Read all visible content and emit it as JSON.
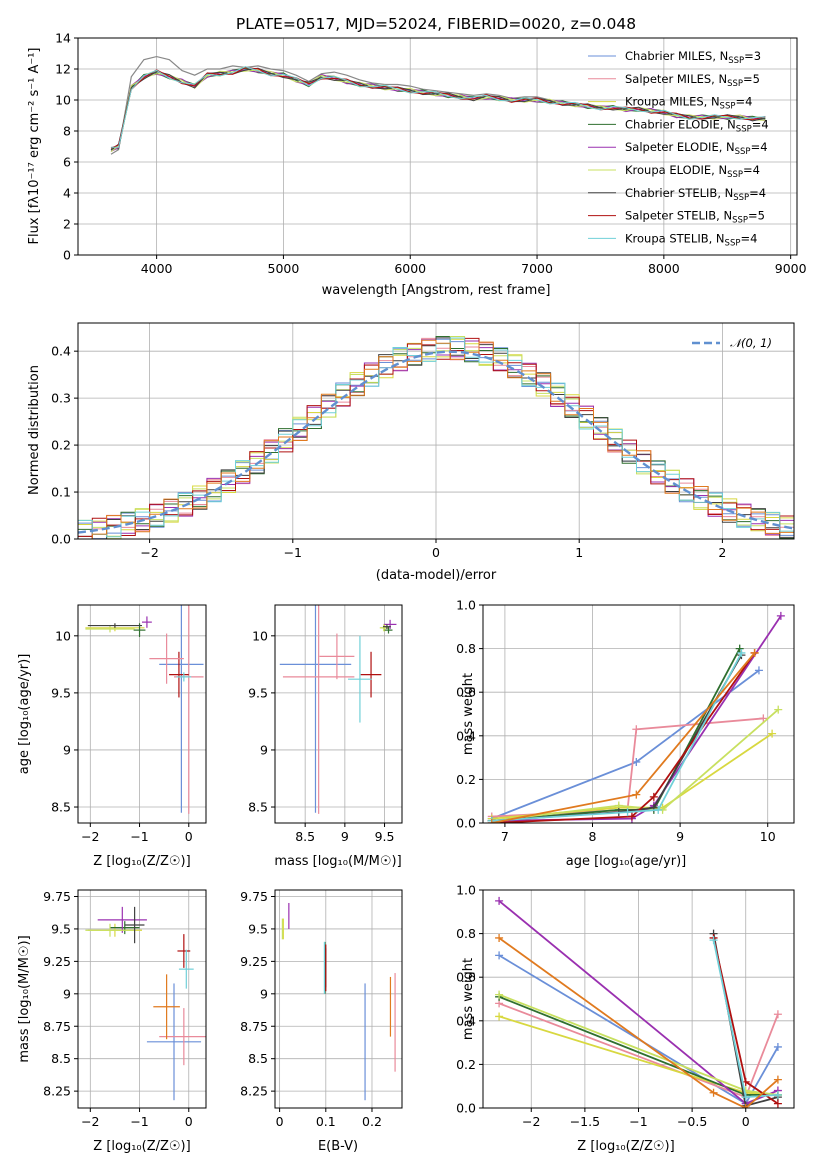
{
  "series_styles": [
    {
      "name": "Chabrier MILES",
      "color": "#6a8fd8"
    },
    {
      "name": "Salpeter MILES",
      "color": "#e98a9a"
    },
    {
      "name": "Kroupa MILES",
      "color": "#d8d840"
    },
    {
      "name": "Chabrier ELODIE",
      "color": "#2f6f2f"
    },
    {
      "name": "Salpeter ELODIE",
      "color": "#9a30b0"
    },
    {
      "name": "Kroupa ELODIE",
      "color": "#c8e060"
    },
    {
      "name": "Chabrier STELIB",
      "color": "#404040"
    },
    {
      "name": "Salpeter STELIB",
      "color": "#b01010"
    },
    {
      "name": "Kroupa STELIB",
      "color": "#70d0d8"
    }
  ],
  "chart_data": [
    {
      "id": "spectrum",
      "type": "line",
      "title": "PLATE=0517, MJD=52024, FIBERID=0020, z=0.048",
      "xlabel": "wavelength [Angstrom, rest frame]",
      "ylabel": "Flux [fλ10⁻¹⁷ erg cm⁻² s⁻¹ A⁻¹]",
      "xlim": [
        3380,
        9050
      ],
      "ylim": [
        0,
        14
      ],
      "xticks": [
        4000,
        5000,
        6000,
        7000,
        8000,
        9000
      ],
      "yticks": [
        0,
        2,
        4,
        6,
        8,
        10,
        12,
        14
      ],
      "grid": true,
      "legend_position": "right",
      "legend": [
        {
          "name": "Chabrier MILES",
          "nssp": "3"
        },
        {
          "name": "Salpeter MILES",
          "nssp": "5"
        },
        {
          "name": "Kroupa MILES",
          "nssp": "4"
        },
        {
          "name": "Chabrier ELODIE",
          "nssp": "4"
        },
        {
          "name": "Salpeter ELODIE",
          "nssp": "4"
        },
        {
          "name": "Kroupa ELODIE",
          "nssp": "4"
        },
        {
          "name": "Chabrier STELIB",
          "nssp": "4"
        },
        {
          "name": "Salpeter STELIB",
          "nssp": "5"
        },
        {
          "name": "Kroupa STELIB",
          "nssp": "4"
        }
      ],
      "data_color": "#888888",
      "data_x": [
        3640,
        3700,
        3800,
        3900,
        4000,
        4100,
        4200,
        4300,
        4400,
        4500,
        4600,
        4700,
        4800,
        4900,
        5000,
        5100,
        5200,
        5300,
        5400,
        5500,
        5600,
        5700,
        5800,
        5900,
        6000,
        6100,
        6200,
        6300,
        6400,
        6500,
        6600,
        6700,
        6800,
        6900,
        7000,
        7100,
        7200,
        7300,
        7400,
        7500,
        7600,
        7700,
        7800,
        7900,
        8000,
        8100,
        8200,
        8300,
        8400,
        8500,
        8600,
        8700,
        8800
      ],
      "data_y": [
        6.5,
        6.8,
        11.5,
        12.6,
        12.8,
        12.6,
        11.9,
        11.6,
        12.0,
        12.0,
        12.2,
        12.1,
        12.2,
        12.0,
        11.9,
        11.6,
        11.2,
        11.7,
        11.8,
        11.6,
        11.3,
        11.1,
        11.0,
        11.0,
        10.9,
        10.7,
        10.6,
        10.5,
        10.4,
        10.3,
        10.4,
        10.3,
        10.1,
        10.2,
        10.2,
        10.0,
        9.9,
        9.8,
        9.7,
        9.6,
        9.6,
        9.4,
        9.4,
        9.4,
        9.3,
        9.0,
        8.8,
        8.8,
        8.9,
        8.9,
        8.8,
        8.8,
        8.8
      ],
      "model_x": [
        3640,
        3700,
        3800,
        3900,
        4000,
        4100,
        4200,
        4300,
        4400,
        4500,
        4600,
        4700,
        4800,
        4900,
        5000,
        5100,
        5200,
        5300,
        5400,
        5500,
        5600,
        5700,
        5800,
        5900,
        6000,
        6100,
        6200,
        6300,
        6400,
        6500,
        6600,
        6700,
        6800,
        6900,
        7000,
        7100,
        7200,
        7300,
        7400,
        7500,
        7600,
        7700,
        7800,
        7900,
        8000,
        8100,
        8200,
        8300,
        8400,
        8500,
        8600,
        8700,
        8800
      ],
      "model_y": [
        6.8,
        7.0,
        10.8,
        11.5,
        11.8,
        11.5,
        11.2,
        10.9,
        11.6,
        11.7,
        11.8,
        12.0,
        11.9,
        11.7,
        11.6,
        11.3,
        11.0,
        11.5,
        11.4,
        11.2,
        11.0,
        10.9,
        10.8,
        10.7,
        10.6,
        10.5,
        10.4,
        10.3,
        10.2,
        10.1,
        10.2,
        10.1,
        10.0,
        10.0,
        10.0,
        9.9,
        9.8,
        9.7,
        9.6,
        9.5,
        9.5,
        9.4,
        9.4,
        9.3,
        9.2,
        9.0,
        8.9,
        8.9,
        8.9,
        8.9,
        8.9,
        8.8,
        8.8
      ]
    },
    {
      "id": "residual-histogram",
      "type": "line",
      "xlabel": "(data-model)/error",
      "ylabel": "Normed distribution",
      "xlim": [
        -2.5,
        2.5
      ],
      "ylim": [
        0,
        0.46
      ],
      "xticks": [
        -2,
        -1,
        0,
        1,
        2
      ],
      "yticks": [
        0.0,
        0.1,
        0.2,
        0.3,
        0.4
      ],
      "grid": true,
      "legend_position": "top-right",
      "legend": [
        {
          "name": "𝒩(0, 1)",
          "color": "#6090d0"
        }
      ],
      "bin_width": 0.1
    },
    {
      "id": "age-vs-Z",
      "type": "scatter",
      "xlabel": "Z [log₁₀(Z/Z☉)]",
      "ylabel": "age  [log₁₀(age/yr)]",
      "xlim": [
        -2.25,
        0.35
      ],
      "ylim": [
        8.36,
        10.27
      ],
      "xticks": [
        -2,
        -1,
        0
      ],
      "yticks": [
        8.5,
        9.0,
        9.5,
        10.0
      ],
      "grid": true,
      "points": [
        {
          "series": 0,
          "x": -0.15,
          "xerr": 0.45,
          "y": 9.75,
          "yerr": 1.3
        },
        {
          "series": 1,
          "x": 0.0,
          "xerr": 0.3,
          "y": 9.64,
          "yerr": 1.2
        },
        {
          "series": 2,
          "x": -1.5,
          "xerr": 0.6,
          "y": 10.07,
          "yerr": 0.03
        },
        {
          "series": 3,
          "x": -1.0,
          "xerr": 0.12,
          "y": 10.05,
          "yerr": 0.06
        },
        {
          "series": 4,
          "x": -0.85,
          "xerr": 0.1,
          "y": 10.12,
          "yerr": 0.05
        },
        {
          "series": 5,
          "x": -1.6,
          "xerr": 0.5,
          "y": 10.06,
          "yerr": 0.03
        },
        {
          "series": 6,
          "x": -1.5,
          "xerr": 0.55,
          "y": 10.09,
          "yerr": 0.02
        },
        {
          "series": 7,
          "x": -0.2,
          "xerr": 0.2,
          "y": 9.66,
          "yerr": 0.2
        },
        {
          "series": 8,
          "x": -0.1,
          "xerr": 0.15,
          "y": 9.64,
          "yerr": 0.04
        },
        {
          "series": 1,
          "x": -0.45,
          "xerr": 0.35,
          "y": 9.8,
          "yerr": 0.22
        }
      ]
    },
    {
      "id": "age-vs-mass",
      "type": "scatter",
      "xlabel": "mass [log₁₀(M/M☉)]",
      "ylabel": "",
      "xlim": [
        8.12,
        9.72
      ],
      "ylim": [
        8.36,
        10.27
      ],
      "xticks": [
        8.5,
        9.0,
        9.5
      ],
      "yticks": [
        8.5,
        9.0,
        9.5,
        10.0
      ],
      "grid": true,
      "points": [
        {
          "series": 0,
          "x": 8.63,
          "xerr": 0.45,
          "y": 9.75,
          "yerr": 1.3
        },
        {
          "series": 1,
          "x": 8.67,
          "xerr": 0.45,
          "y": 9.64,
          "yerr": 1.2
        },
        {
          "series": 2,
          "x": 9.5,
          "xerr": 0.05,
          "y": 10.07,
          "yerr": 0.03
        },
        {
          "series": 3,
          "x": 9.55,
          "xerr": 0.05,
          "y": 10.05,
          "yerr": 0.03
        },
        {
          "series": 4,
          "x": 9.57,
          "xerr": 0.08,
          "y": 10.1,
          "yerr": 0.04
        },
        {
          "series": 5,
          "x": 9.49,
          "xerr": 0.05,
          "y": 10.07,
          "yerr": 0.03
        },
        {
          "series": 6,
          "x": 9.53,
          "xerr": 0.05,
          "y": 10.08,
          "yerr": 0.02
        },
        {
          "series": 7,
          "x": 9.33,
          "xerr": 0.13,
          "y": 9.66,
          "yerr": 0.2
        },
        {
          "series": 8,
          "x": 9.19,
          "xerr": 0.15,
          "y": 9.62,
          "yerr": 0.38
        },
        {
          "series": 1,
          "x": 8.9,
          "xerr": 0.22,
          "y": 9.82,
          "yerr": 0.2
        }
      ]
    },
    {
      "id": "mass-weight-vs-age",
      "type": "line",
      "xlabel": "age  [log₁₀(age/yr)]",
      "ylabel": "mass weight",
      "xlim": [
        6.75,
        10.3
      ],
      "ylim": [
        0,
        1
      ],
      "xticks": [
        7,
        8,
        9,
        10
      ],
      "yticks": [
        0.0,
        0.2,
        0.4,
        0.6,
        0.8,
        1.0
      ],
      "grid": true,
      "series": [
        {
          "series": 0,
          "x": [
            6.85,
            8.5,
            9.9
          ],
          "y": [
            0.02,
            0.28,
            0.7
          ]
        },
        {
          "series": 1,
          "x": [
            6.85,
            8.4,
            8.5,
            9.95
          ],
          "y": [
            0.03,
            0.06,
            0.43,
            0.48
          ]
        },
        {
          "series": 2,
          "x": [
            6.85,
            8.3,
            8.8,
            10.05
          ],
          "y": [
            0.02,
            0.07,
            0.07,
            0.41
          ]
        },
        {
          "series": 3,
          "x": [
            6.85,
            8.3,
            8.7,
            9.68
          ],
          "y": [
            0.01,
            0.06,
            0.06,
            0.8
          ]
        },
        {
          "series": 4,
          "x": [
            6.85,
            8.45,
            8.7,
            10.15
          ],
          "y": [
            0.01,
            0.02,
            0.08,
            0.95
          ]
        },
        {
          "series": 5,
          "x": [
            6.85,
            8.3,
            8.8,
            10.12
          ],
          "y": [
            0.01,
            0.08,
            0.06,
            0.52
          ]
        },
        {
          "series": 6,
          "x": [
            6.85,
            8.3,
            8.7,
            9.7
          ],
          "y": [
            0.01,
            0.05,
            0.07,
            0.77
          ]
        },
        {
          "series": 7,
          "x": [
            6.85,
            8.45,
            8.7,
            9.85
          ],
          "y": [
            0.0,
            0.03,
            0.12,
            0.78
          ]
        },
        {
          "series": 8,
          "x": [
            6.85,
            8.4,
            8.75,
            9.7
          ],
          "y": [
            0.01,
            0.05,
            0.06,
            0.78
          ]
        },
        {
          "series": -1,
          "color": "#e07a1f",
          "x": [
            6.85,
            8.5,
            9.85
          ],
          "y": [
            0.0,
            0.13,
            0.78
          ]
        }
      ]
    },
    {
      "id": "mass-vs-Z",
      "type": "scatter",
      "xlabel": "Z [log₁₀(Z/Z☉)]",
      "ylabel": "mass [log₁₀(M/M☉)]",
      "xlim": [
        -2.25,
        0.35
      ],
      "ylim": [
        8.12,
        9.8
      ],
      "xticks": [
        -2,
        -1,
        0
      ],
      "yticks": [
        8.25,
        8.5,
        8.75,
        9.0,
        9.25,
        9.5,
        9.75
      ],
      "grid": true,
      "points": [
        {
          "series": 0,
          "x": -0.3,
          "xerr": 0.55,
          "y": 8.63,
          "yerr": 0.45
        },
        {
          "series": 1,
          "x": -0.1,
          "xerr": 0.5,
          "y": 8.67,
          "yerr": 0.22
        },
        {
          "series": 2,
          "x": -1.5,
          "xerr": 0.55,
          "y": 9.49,
          "yerr": 0.05
        },
        {
          "series": 3,
          "x": -1.3,
          "xerr": 0.3,
          "y": 9.51,
          "yerr": 0.05
        },
        {
          "series": 4,
          "x": -1.35,
          "xerr": 0.5,
          "y": 9.57,
          "yerr": 0.1
        },
        {
          "series": 5,
          "x": -1.6,
          "xerr": 0.5,
          "y": 9.49,
          "yerr": 0.05
        },
        {
          "series": 6,
          "x": -1.1,
          "xerr": 0.2,
          "y": 9.53,
          "yerr": 0.14
        },
        {
          "series": 7,
          "x": -0.1,
          "xerr": 0.13,
          "y": 9.33,
          "yerr": 0.13
        },
        {
          "series": 8,
          "x": -0.05,
          "xerr": 0.15,
          "y": 9.19,
          "yerr": 0.15
        },
        {
          "series": -1,
          "color": "#e07a1f",
          "x": -0.45,
          "xerr": 0.27,
          "y": 8.9,
          "yerr": 0.25
        }
      ]
    },
    {
      "id": "mass-vs-EBV",
      "type": "scatter",
      "xlabel": "E(B-V)",
      "ylabel": "",
      "xlim": [
        -0.01,
        0.265
      ],
      "ylim": [
        8.12,
        9.8
      ],
      "xticks": [
        0.0,
        0.1,
        0.2
      ],
      "yticks": [
        8.25,
        8.5,
        8.75,
        9.0,
        9.25,
        9.5,
        9.75
      ],
      "grid": true,
      "points": [
        {
          "series": 0,
          "x": 0.185,
          "y": 8.63,
          "yerr": 0.45
        },
        {
          "series": 1,
          "x": 0.25,
          "y": 8.78,
          "yerr": 0.38
        },
        {
          "series": 2,
          "x": 0.008,
          "y": 9.5,
          "yerr": 0.08
        },
        {
          "series": 3,
          "x": 0.098,
          "y": 9.2,
          "yerr": 0.2
        },
        {
          "series": 4,
          "x": 0.02,
          "y": 9.6,
          "yerr": 0.1
        },
        {
          "series": 5,
          "x": 0.006,
          "y": 9.5,
          "yerr": 0.08
        },
        {
          "series": 6,
          "x": 0.1,
          "y": 9.2,
          "yerr": 0.15
        },
        {
          "series": 7,
          "x": 0.1,
          "y": 9.2,
          "yerr": 0.18
        },
        {
          "series": 8,
          "x": 0.097,
          "y": 9.2,
          "yerr": 0.2
        },
        {
          "series": -1,
          "color": "#e07a1f",
          "x": 0.24,
          "y": 8.9,
          "yerr": 0.23
        }
      ]
    },
    {
      "id": "mass-weight-vs-Z",
      "type": "line",
      "xlabel": "Z [log₁₀(Z/Z☉)]",
      "ylabel": "mass weight",
      "xlim": [
        -2.45,
        0.45
      ],
      "ylim": [
        0,
        1
      ],
      "xticks": [
        -2.0,
        -1.5,
        -1.0,
        -0.5,
        0.0
      ],
      "yticks": [
        0.0,
        0.2,
        0.4,
        0.6,
        0.8,
        1.0
      ],
      "grid": true,
      "series": [
        {
          "series": 0,
          "x": [
            -2.3,
            0.0,
            0.3
          ],
          "y": [
            0.7,
            0.02,
            0.28
          ]
        },
        {
          "series": 1,
          "x": [
            -2.3,
            0.0,
            0.3
          ],
          "y": [
            0.48,
            0.05,
            0.43
          ]
        },
        {
          "series": 2,
          "x": [
            -2.3,
            0.0,
            0.3
          ],
          "y": [
            0.42,
            0.07,
            0.06
          ]
        },
        {
          "series": 3,
          "x": [
            -2.3,
            0.0,
            0.3
          ],
          "y": [
            0.51,
            0.06,
            0.06
          ]
        },
        {
          "series": 4,
          "x": [
            -2.3,
            0.0,
            0.3
          ],
          "y": [
            0.95,
            0.02,
            0.08
          ]
        },
        {
          "series": 5,
          "x": [
            -2.3,
            0.0,
            0.3
          ],
          "y": [
            0.52,
            0.08,
            0.06
          ]
        },
        {
          "series": 6,
          "x": [
            -0.3,
            0.0,
            0.3
          ],
          "y": [
            0.8,
            0.01,
            0.05
          ]
        },
        {
          "series": 7,
          "x": [
            -0.3,
            0.0,
            0.3
          ],
          "y": [
            0.78,
            0.12,
            0.02
          ]
        },
        {
          "series": 8,
          "x": [
            -0.3,
            0.0,
            0.3
          ],
          "y": [
            0.77,
            0.05,
            0.06
          ]
        },
        {
          "series": -1,
          "color": "#e07a1f",
          "x": [
            -2.3,
            -0.3,
            0.0,
            0.3
          ],
          "y": [
            0.78,
            0.07,
            0.0,
            0.13
          ]
        }
      ]
    }
  ]
}
